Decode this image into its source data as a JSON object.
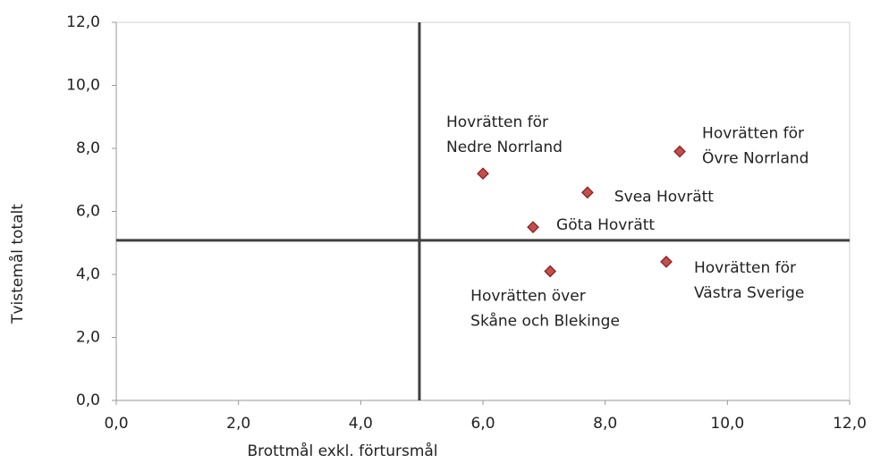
{
  "chart_data": {
    "type": "scatter",
    "x_label": "Brottmål exkl. förtursmål",
    "y_label": "Tvistemål totalt",
    "xlim": [
      0,
      12
    ],
    "ylim": [
      0,
      12
    ],
    "xticks": [
      {
        "value": 0,
        "label": "0,0"
      },
      {
        "value": 2,
        "label": "2,0"
      },
      {
        "value": 4,
        "label": "4,0"
      },
      {
        "value": 6,
        "label": "6,0"
      },
      {
        "value": 8,
        "label": "8,0"
      },
      {
        "value": 10,
        "label": "10,0"
      },
      {
        "value": 12,
        "label": "12,0"
      }
    ],
    "yticks": [
      {
        "value": 0,
        "label": "0,0"
      },
      {
        "value": 2,
        "label": "2,0"
      },
      {
        "value": 4,
        "label": "4,0"
      },
      {
        "value": 6,
        "label": "6,0"
      },
      {
        "value": 8,
        "label": "8,0"
      },
      {
        "value": 10,
        "label": "10,0"
      },
      {
        "value": 12,
        "label": "12,0"
      }
    ],
    "color": "#c0504d",
    "reference_lines": {
      "x": 4.96,
      "y": 5.08
    },
    "points": {
      "labels": [
        [
          "Hovrätten för",
          "Nedre Norrland"
        ],
        [
          "Hovrätten för",
          "Övre Norrland"
        ],
        [
          "Svea Hovrätt"
        ],
        [
          "Göta Hovrätt"
        ],
        [
          "Hovrätten över",
          "Skåne och Blekinge"
        ],
        [
          "Hovrätten för",
          "Västra Sverige"
        ]
      ],
      "x": [
        6.0,
        9.22,
        7.71,
        6.82,
        7.1,
        9.0
      ],
      "y": [
        7.2,
        7.9,
        6.6,
        5.5,
        4.1,
        4.4
      ]
    }
  }
}
